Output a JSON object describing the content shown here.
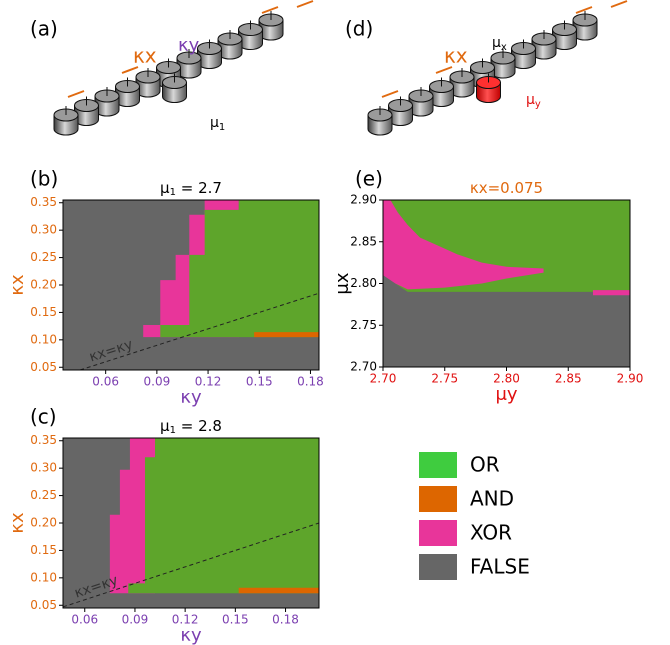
{
  "panels": {
    "a": {
      "label": "(a)",
      "kx": "κx",
      "ky": "κy",
      "mu": "μ",
      "mu_sub": "1"
    },
    "d": {
      "label": "(d)",
      "kx": "κx",
      "mux": "μ",
      "mux_sub": "x",
      "muy": "μ",
      "muy_sub": "y"
    }
  },
  "chart_data": [
    {
      "type": "phase",
      "label": "(b)",
      "title": {
        "symbol": "μ",
        "sub": "1",
        "rest": " = 2.7"
      },
      "xlabel": "κy",
      "ylabel": "κx",
      "xlabel_color": "#7b3fb0",
      "ylabel_color": "#e06a10",
      "xtick_color": "#7b3fb0",
      "ytick_color": "#e06a10",
      "diagonal_label": "κx=κy",
      "xlim": [
        0.035,
        0.185
      ],
      "ylim": [
        0.045,
        0.355
      ],
      "xticks": [
        0.06,
        0.09,
        0.12,
        0.15,
        0.18
      ],
      "yticks": [
        {
          "value": 0.05,
          "label": "0.05"
        },
        {
          "value": 0.1,
          "label": "0.10"
        },
        0.15,
        {
          "value": 0.2,
          "label": "0.20"
        },
        0.25,
        {
          "value": 0.3,
          "label": "0.30"
        },
        0.35
      ],
      "regions": [
        {
          "name": "FALSE",
          "color": "#666666",
          "polygons": [
            [
              [
                0.035,
                0.045
              ],
              [
                0.185,
                0.045
              ],
              [
                0.185,
                0.355
              ],
              [
                0.035,
                0.355
              ]
            ]
          ]
        },
        {
          "name": "XOR",
          "color": "#e8359a",
          "polygons": [
            [
              [
                0.082,
                0.105
              ],
              [
                0.082,
                0.127
              ],
              [
                0.092,
                0.127
              ],
              [
                0.092,
                0.209
              ],
              [
                0.101,
                0.209
              ],
              [
                0.101,
                0.255
              ],
              [
                0.109,
                0.255
              ],
              [
                0.109,
                0.328
              ],
              [
                0.118,
                0.328
              ],
              [
                0.118,
                0.355
              ],
              [
                0.138,
                0.355
              ],
              [
                0.138,
                0.105
              ]
            ]
          ]
        },
        {
          "name": "OR",
          "color": "#5ea52b",
          "polygons": [
            [
              [
                0.092,
                0.105
              ],
              [
                0.185,
                0.105
              ],
              [
                0.185,
                0.355
              ],
              [
                0.138,
                0.355
              ],
              [
                0.138,
                0.337
              ],
              [
                0.118,
                0.337
              ],
              [
                0.118,
                0.255
              ],
              [
                0.109,
                0.255
              ],
              [
                0.109,
                0.127
              ],
              [
                0.092,
                0.127
              ]
            ]
          ]
        },
        {
          "name": "AND",
          "color": "#dd6600",
          "polygons": [
            [
              [
                0.147,
                0.105
              ],
              [
                0.185,
                0.105
              ],
              [
                0.185,
                0.114
              ],
              [
                0.147,
                0.114
              ]
            ]
          ]
        }
      ]
    },
    {
      "type": "phase",
      "label": "(c)",
      "title": {
        "symbol": "μ",
        "sub": "1",
        "rest": " = 2.8"
      },
      "xlabel": "κy",
      "ylabel": "κx",
      "xlabel_color": "#7b3fb0",
      "ylabel_color": "#e06a10",
      "xtick_color": "#7b3fb0",
      "ytick_color": "#e06a10",
      "diagonal_label": "κx=κy",
      "xlim": [
        0.047,
        0.2
      ],
      "ylim": [
        0.045,
        0.355
      ],
      "xticks": [
        0.06,
        0.09,
        0.12,
        0.15,
        0.18
      ],
      "yticks": [
        {
          "value": 0.05,
          "label": "0.05"
        },
        {
          "value": 0.1,
          "label": "0.10"
        },
        0.15,
        {
          "value": 0.2,
          "label": "0.20"
        },
        0.25,
        {
          "value": 0.3,
          "label": "0.30"
        },
        0.35
      ],
      "regions": [
        {
          "name": "FALSE",
          "color": "#666666",
          "polygons": [
            [
              [
                0.047,
                0.045
              ],
              [
                0.2,
                0.045
              ],
              [
                0.2,
                0.355
              ],
              [
                0.047,
                0.355
              ]
            ]
          ]
        },
        {
          "name": "XOR",
          "color": "#e8359a",
          "polygons": [
            [
              [
                0.075,
                0.072
              ],
              [
                0.075,
                0.215
              ],
              [
                0.081,
                0.215
              ],
              [
                0.081,
                0.297
              ],
              [
                0.087,
                0.297
              ],
              [
                0.087,
                0.355
              ],
              [
                0.102,
                0.355
              ],
              [
                0.102,
                0.072
              ]
            ]
          ]
        },
        {
          "name": "OR",
          "color": "#5ea52b",
          "polygons": [
            [
              [
                0.086,
                0.072
              ],
              [
                0.2,
                0.072
              ],
              [
                0.2,
                0.355
              ],
              [
                0.102,
                0.355
              ],
              [
                0.102,
                0.32
              ],
              [
                0.096,
                0.32
              ],
              [
                0.096,
                0.09
              ],
              [
                0.086,
                0.09
              ]
            ]
          ]
        },
        {
          "name": "AND",
          "color": "#dd6600",
          "polygons": [
            [
              [
                0.152,
                0.072
              ],
              [
                0.2,
                0.072
              ],
              [
                0.2,
                0.082
              ],
              [
                0.152,
                0.082
              ]
            ]
          ]
        }
      ]
    },
    {
      "type": "phase",
      "label": "(e)",
      "title": {
        "rest": "κx=0.075"
      },
      "title_color": "#e06a10",
      "xlabel": "μy",
      "ylabel": "μx",
      "xlabel_color": "#e01010",
      "ylabel_color": "#000000",
      "xtick_color": "#e01010",
      "ytick_color": "#000000",
      "xlim": [
        2.7,
        2.9
      ],
      "ylim": [
        2.7,
        2.9
      ],
      "xticks": [
        {
          "value": 2.7,
          "label": "2.70"
        },
        2.75,
        {
          "value": 2.8,
          "label": "2.80"
        },
        2.85,
        {
          "value": 2.9,
          "label": "2.90"
        }
      ],
      "yticks": [
        {
          "value": 2.7,
          "label": "2.70"
        },
        2.75,
        {
          "value": 2.8,
          "label": "2.80"
        },
        2.85,
        {
          "value": 2.9,
          "label": "2.90"
        }
      ],
      "regions": [
        {
          "name": "OR",
          "color": "#5ea52b",
          "polygons": [
            [
              [
                2.7,
                2.7
              ],
              [
                2.9,
                2.7
              ],
              [
                2.9,
                2.9
              ],
              [
                2.7,
                2.9
              ]
            ]
          ]
        },
        {
          "name": "FALSE",
          "color": "#666666",
          "polygons": [
            [
              [
                2.7,
                2.7
              ],
              [
                2.9,
                2.7
              ],
              [
                2.9,
                2.79
              ],
              [
                2.72,
                2.79
              ],
              [
                2.71,
                2.8
              ],
              [
                2.705,
                2.82
              ],
              [
                2.7,
                2.835
              ]
            ]
          ]
        },
        {
          "name": "XOR",
          "color": "#e8359a",
          "polygons": [
            [
              [
                2.7,
                2.9
              ],
              [
                2.706,
                2.9
              ],
              [
                2.712,
                2.885
              ],
              [
                2.72,
                2.87
              ],
              [
                2.73,
                2.855
              ],
              [
                2.745,
                2.845
              ],
              [
                2.76,
                2.835
              ],
              [
                2.78,
                2.825
              ],
              [
                2.8,
                2.82
              ],
              [
                2.83,
                2.818
              ],
              [
                2.83,
                2.813
              ],
              [
                2.8,
                2.806
              ],
              [
                2.78,
                2.8
              ],
              [
                2.75,
                2.795
              ],
              [
                2.72,
                2.793
              ],
              [
                2.71,
                2.8
              ],
              [
                2.7,
                2.81
              ]
            ],
            [
              [
                2.87,
                2.786
              ],
              [
                2.9,
                2.786
              ],
              [
                2.9,
                2.792
              ],
              [
                2.87,
                2.792
              ]
            ]
          ]
        }
      ]
    }
  ],
  "legend": [
    {
      "name": "OR",
      "color": "#3fcc3f"
    },
    {
      "name": "AND",
      "color": "#dd6600"
    },
    {
      "name": "XOR",
      "color": "#e8359a"
    },
    {
      "name": "FALSE",
      "color": "#666666"
    }
  ]
}
